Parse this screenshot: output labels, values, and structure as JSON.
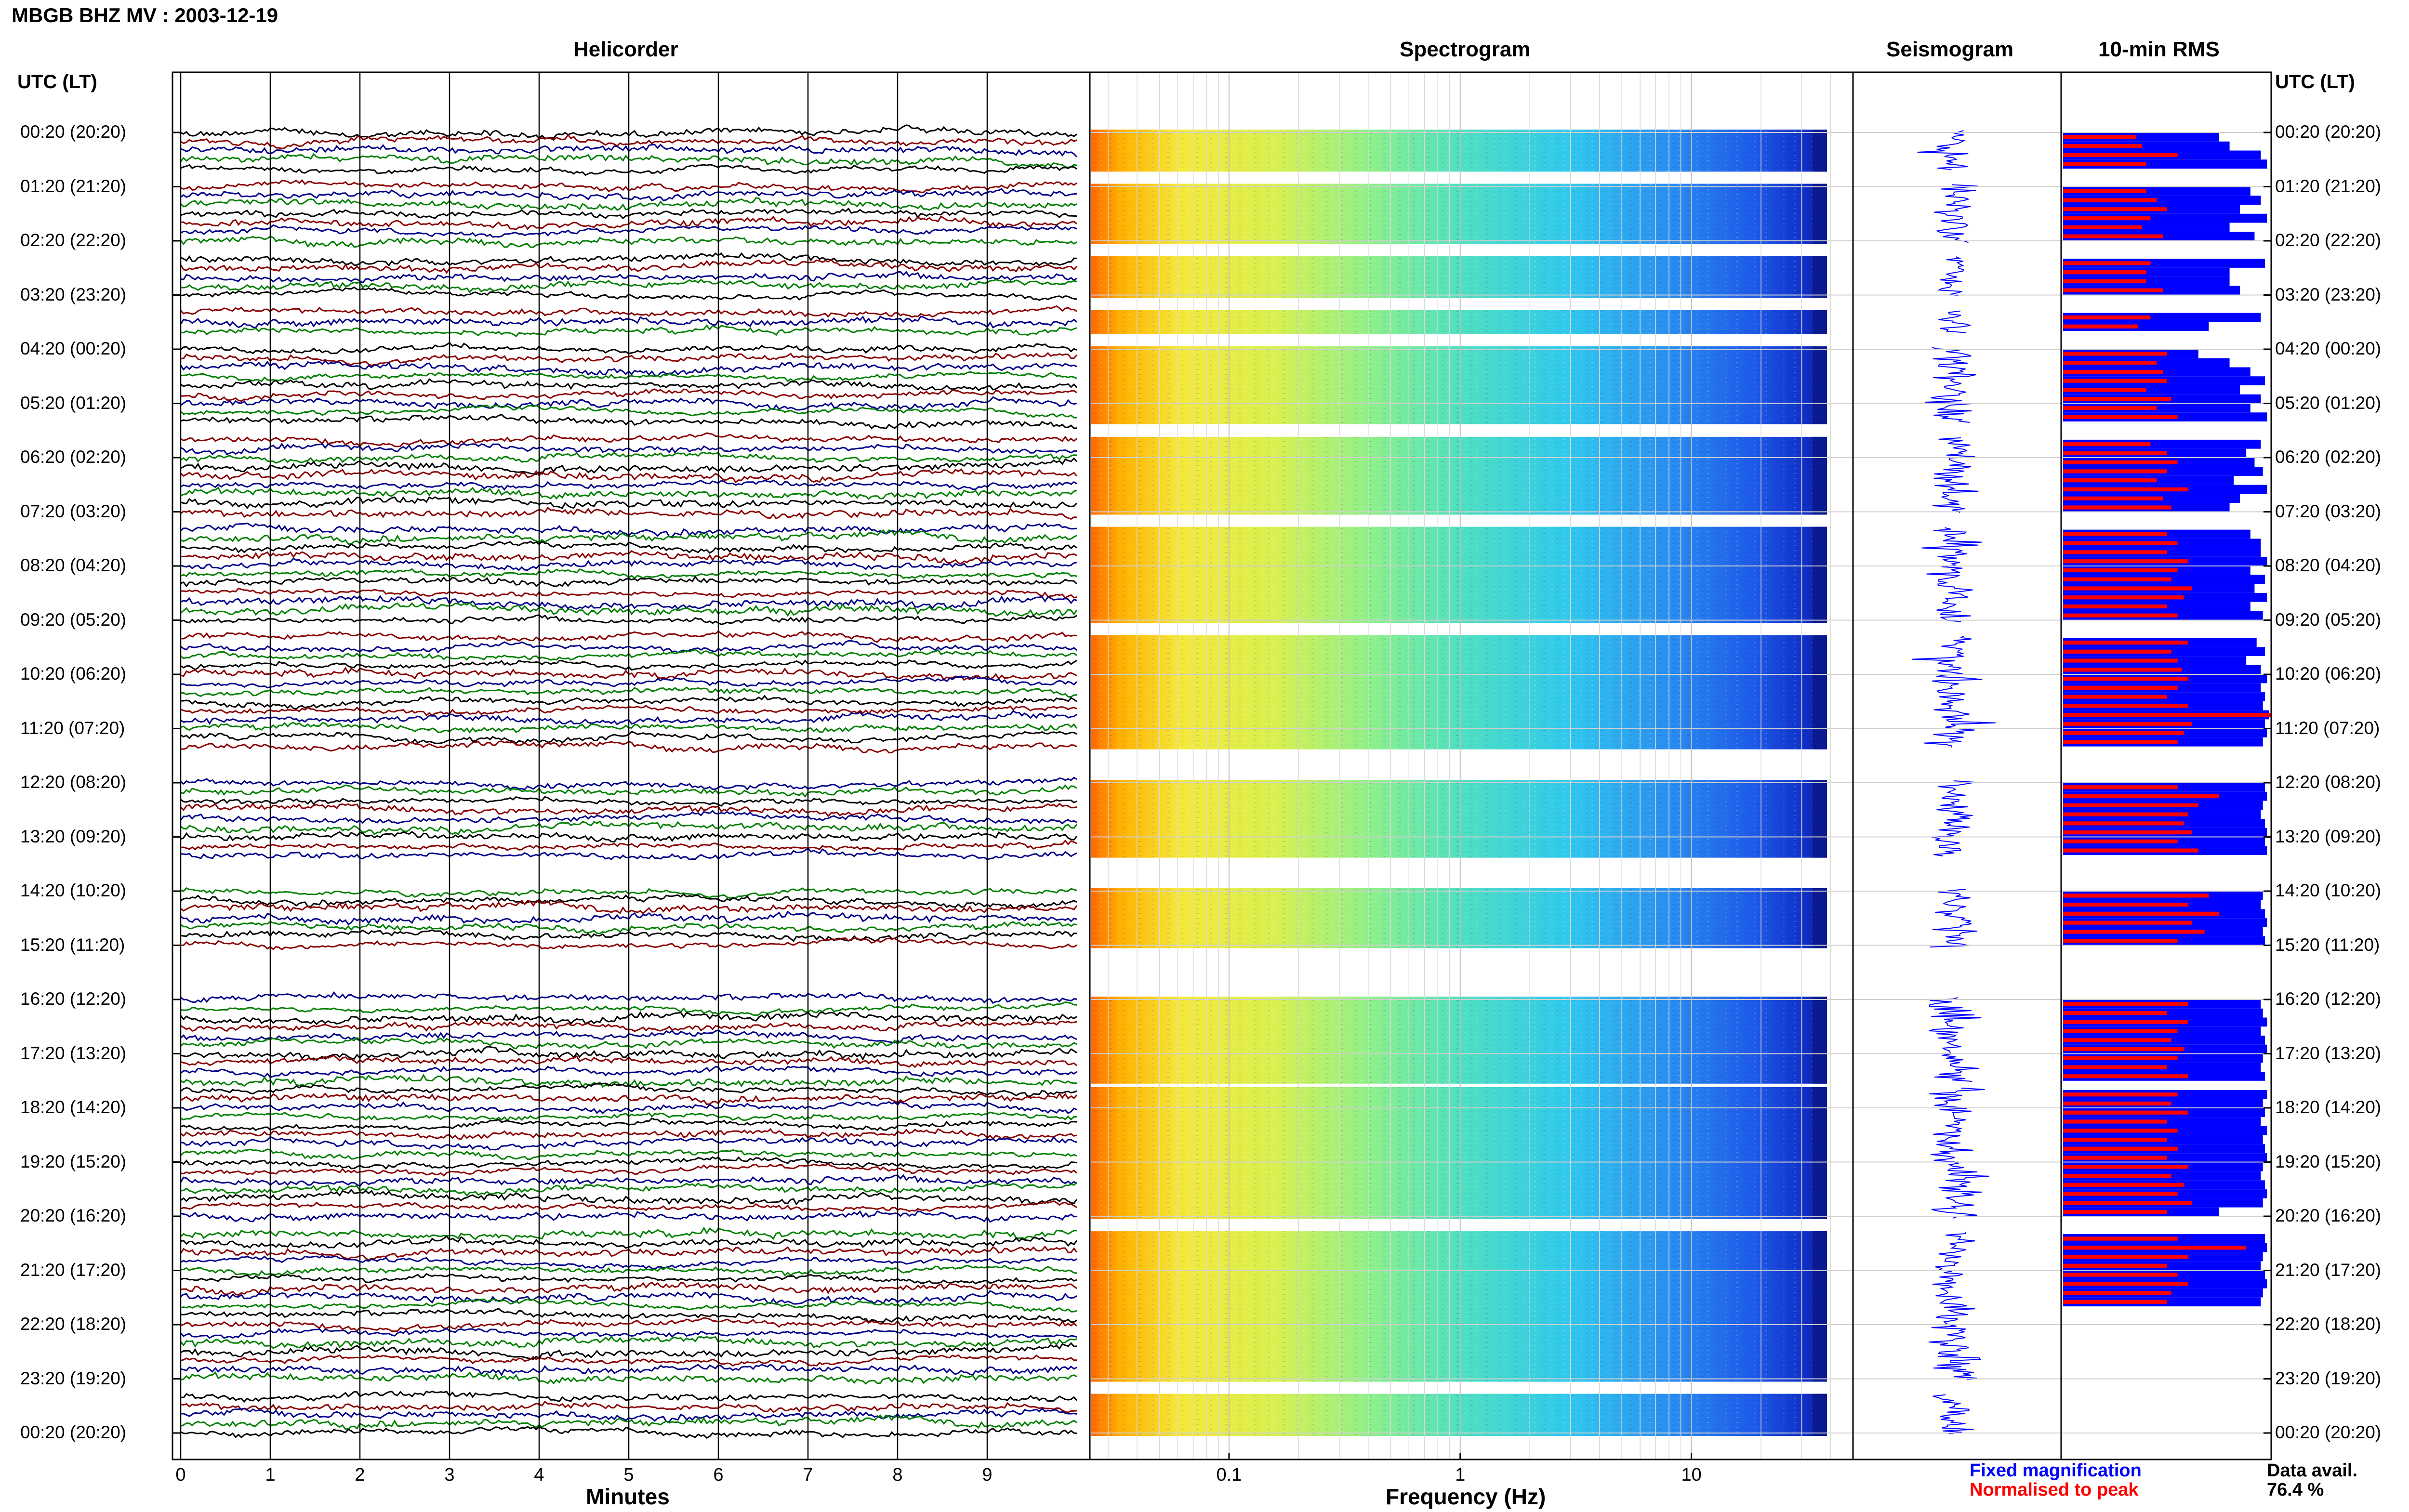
{
  "page_title": "MBGB BHZ MV : 2003-12-19",
  "utc_lt_header": "UTC (LT)",
  "panel_titles": {
    "helicorder": "Helicorder",
    "spectrogram": "Spectrogram",
    "seismogram": "Seismogram",
    "rms": "10-min RMS"
  },
  "legend": {
    "fixed": "Fixed magnification",
    "normalised": "Normalised to peak",
    "fixed_color": "#0000ff",
    "normalised_color": "#ff0000"
  },
  "data_avail": {
    "label": "Data avail.",
    "value": "76.4 %"
  },
  "chart_data": {
    "type": "helicorder-spectrogram-panel",
    "time_labels": [
      "00:20 (20:20)",
      "01:20 (21:20)",
      "02:20 (22:20)",
      "03:20 (23:20)",
      "04:20 (00:20)",
      "05:20 (01:20)",
      "06:20 (02:20)",
      "07:20 (03:20)",
      "08:20 (04:20)",
      "09:20 (05:20)",
      "10:20 (06:20)",
      "11:20 (07:20)",
      "12:20 (08:20)",
      "13:20 (09:20)",
      "14:20 (10:20)",
      "15:20 (11:20)",
      "16:20 (12:20)",
      "17:20 (13:20)",
      "18:20 (14:20)",
      "19:20 (15:20)",
      "20:20 (16:20)",
      "21:20 (17:20)",
      "22:20 (18:20)",
      "23:20 (19:20)",
      "00:20 (20:20)"
    ],
    "helicorder": {
      "xlabel": "Minutes",
      "xticks": [
        0,
        1,
        2,
        3,
        4,
        5,
        6,
        7,
        8,
        9
      ],
      "xlim": [
        0,
        10
      ],
      "trace_colors": [
        "#000000",
        "#8b0000",
        "#00008b",
        "#008000"
      ],
      "traces_per_hour": 6
    },
    "spectrogram": {
      "xlabel": "Frequency (Hz)",
      "xscale": "log",
      "xticks": [
        0.1,
        1,
        10
      ],
      "xtick_labels": [
        "0.1",
        "1",
        "10"
      ],
      "xlim": [
        0.025,
        50
      ]
    },
    "data_blocks_hours": [
      [
        0,
        0.67
      ],
      [
        1,
        2
      ],
      [
        2.33,
        3
      ],
      [
        3.33,
        3.67
      ],
      [
        4,
        5.33
      ],
      [
        5.67,
        7
      ],
      [
        7.33,
        9
      ],
      [
        9.33,
        11.33
      ],
      [
        12,
        13.33
      ],
      [
        14,
        15
      ],
      [
        16,
        17.5
      ],
      [
        17.67,
        20
      ],
      [
        20.33,
        23
      ],
      [
        23.33,
        24
      ]
    ],
    "rms_bars": [
      {
        "fixed": 0.75,
        "norm": 0.35
      },
      {
        "fixed": 0.8,
        "norm": 0.38
      },
      {
        "fixed": 0.95,
        "norm": 0.55
      },
      {
        "fixed": 0.98,
        "norm": 0.4
      },
      {
        "fixed": 0.9,
        "norm": 0.4
      },
      {
        "fixed": 0.95,
        "norm": 0.45
      },
      {
        "fixed": 0.85,
        "norm": 0.5
      },
      {
        "fixed": 0.98,
        "norm": 0.42
      },
      {
        "fixed": 0.8,
        "norm": 0.38
      },
      {
        "fixed": 0.92,
        "norm": 0.48
      },
      {
        "fixed": 0.97,
        "norm": 0.42
      },
      {
        "fixed": 0.8,
        "norm": 0.4
      },
      {
        "fixed": 0.8,
        "norm": 0.4
      },
      {
        "fixed": 0.85,
        "norm": 0.48
      },
      {
        "fixed": 0.95,
        "norm": 0.42
      },
      {
        "fixed": 0.7,
        "norm": 0.36
      },
      {
        "fixed": 0.65,
        "norm": 0.5
      },
      {
        "fixed": 0.8,
        "norm": 0.45
      },
      {
        "fixed": 0.9,
        "norm": 0.48
      },
      {
        "fixed": 0.97,
        "norm": 0.5
      },
      {
        "fixed": 0.85,
        "norm": 0.4
      },
      {
        "fixed": 0.95,
        "norm": 0.52
      },
      {
        "fixed": 0.9,
        "norm": 0.45
      },
      {
        "fixed": 0.98,
        "norm": 0.55
      },
      {
        "fixed": 0.95,
        "norm": 0.42
      },
      {
        "fixed": 0.88,
        "norm": 0.5
      },
      {
        "fixed": 0.92,
        "norm": 0.55
      },
      {
        "fixed": 0.96,
        "norm": 0.5
      },
      {
        "fixed": 0.82,
        "norm": 0.45
      },
      {
        "fixed": 0.98,
        "norm": 0.6
      },
      {
        "fixed": 0.85,
        "norm": 0.48
      },
      {
        "fixed": 0.8,
        "norm": 0.52
      },
      {
        "fixed": 0.9,
        "norm": 0.5
      },
      {
        "fixed": 0.95,
        "norm": 0.55
      },
      {
        "fixed": 0.95,
        "norm": 0.5
      },
      {
        "fixed": 0.98,
        "norm": 0.6
      },
      {
        "fixed": 0.9,
        "norm": 0.55
      },
      {
        "fixed": 0.97,
        "norm": 0.52
      },
      {
        "fixed": 0.92,
        "norm": 0.62
      },
      {
        "fixed": 0.98,
        "norm": 0.58
      },
      {
        "fixed": 0.9,
        "norm": 0.5
      },
      {
        "fixed": 0.96,
        "norm": 0.55
      },
      {
        "fixed": 0.93,
        "norm": 0.6
      },
      {
        "fixed": 0.97,
        "norm": 0.52
      },
      {
        "fixed": 0.88,
        "norm": 0.55
      },
      {
        "fixed": 0.95,
        "norm": 0.57
      },
      {
        "fixed": 0.98,
        "norm": 0.6
      },
      {
        "fixed": 0.95,
        "norm": 0.55
      },
      {
        "fixed": 0.97,
        "norm": 0.5
      },
      {
        "fixed": 0.96,
        "norm": 0.6
      },
      {
        "fixed": 0.99,
        "norm": 1.0
      },
      {
        "fixed": 0.97,
        "norm": 0.62
      },
      {
        "fixed": 0.98,
        "norm": 0.58
      },
      {
        "fixed": 0.96,
        "norm": 0.55
      },
      {
        "fixed": 0.97,
        "norm": 0.55
      },
      {
        "fixed": 0.98,
        "norm": 0.75
      },
      {
        "fixed": 0.96,
        "norm": 0.65
      },
      {
        "fixed": 0.95,
        "norm": 0.6
      },
      {
        "fixed": 0.97,
        "norm": 0.58
      },
      {
        "fixed": 0.98,
        "norm": 0.62
      },
      {
        "fixed": 0.97,
        "norm": 0.55
      },
      {
        "fixed": 0.98,
        "norm": 0.65
      },
      {
        "fixed": 0.96,
        "norm": 0.7
      },
      {
        "fixed": 0.95,
        "norm": 0.6
      },
      {
        "fixed": 0.97,
        "norm": 0.75
      },
      {
        "fixed": 0.98,
        "norm": 0.62
      },
      {
        "fixed": 0.96,
        "norm": 0.68
      },
      {
        "fixed": 0.97,
        "norm": 0.55
      },
      {
        "fixed": 0.95,
        "norm": 0.6
      },
      {
        "fixed": 0.96,
        "norm": 0.5
      },
      {
        "fixed": 0.98,
        "norm": 0.6
      },
      {
        "fixed": 0.95,
        "norm": 0.55
      },
      {
        "fixed": 0.97,
        "norm": 0.52
      },
      {
        "fixed": 0.98,
        "norm": 0.58
      },
      {
        "fixed": 0.96,
        "norm": 0.55
      },
      {
        "fixed": 0.95,
        "norm": 0.5
      },
      {
        "fixed": 0.97,
        "norm": 0.6
      },
      {
        "fixed": 0.98,
        "norm": 0.55
      },
      {
        "fixed": 0.96,
        "norm": 0.52
      },
      {
        "fixed": 0.97,
        "norm": 0.6
      },
      {
        "fixed": 0.95,
        "norm": 0.5
      },
      {
        "fixed": 0.98,
        "norm": 0.55
      },
      {
        "fixed": 0.96,
        "norm": 0.5
      },
      {
        "fixed": 0.97,
        "norm": 0.55
      },
      {
        "fixed": 0.98,
        "norm": 0.5
      },
      {
        "fixed": 0.96,
        "norm": 0.6
      },
      {
        "fixed": 0.95,
        "norm": 0.52
      },
      {
        "fixed": 0.97,
        "norm": 0.58
      },
      {
        "fixed": 0.98,
        "norm": 0.55
      },
      {
        "fixed": 0.96,
        "norm": 0.62
      },
      {
        "fixed": 0.75,
        "norm": 0.5
      },
      {
        "fixed": 0.97,
        "norm": 0.55
      },
      {
        "fixed": 0.98,
        "norm": 0.88
      },
      {
        "fixed": 0.96,
        "norm": 0.6
      },
      {
        "fixed": 0.95,
        "norm": 0.5
      },
      {
        "fixed": 0.97,
        "norm": 0.55
      },
      {
        "fixed": 0.98,
        "norm": 0.6
      },
      {
        "fixed": 0.96,
        "norm": 0.52
      },
      {
        "fixed": 0.95,
        "norm": 0.5
      }
    ]
  }
}
